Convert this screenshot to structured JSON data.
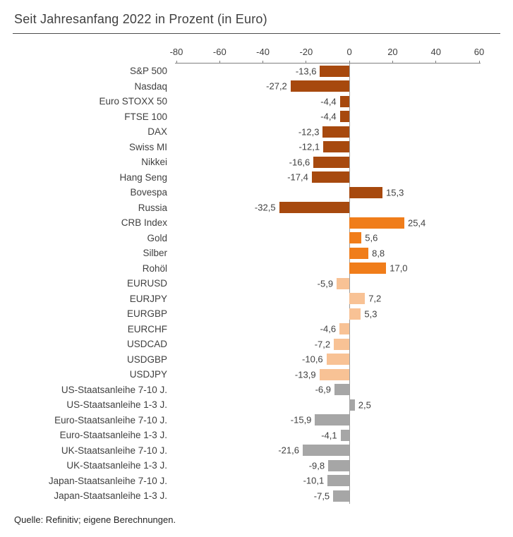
{
  "header": {
    "title": "Seit Jahresanfang 2022 in Prozent (in Euro)"
  },
  "footer": {
    "source": "Quelle: Refinitiv; eigene Berechnungen."
  },
  "chart_data": {
    "type": "bar",
    "orientation": "horizontal",
    "title": "Seit Jahresanfang 2022 in Prozent (in Euro)",
    "xlabel": "",
    "ylabel": "",
    "xlim": [
      -80,
      60
    ],
    "x_ticks": [
      "-80",
      "-60",
      "-40",
      "-20",
      "0",
      "20",
      "40",
      "60"
    ],
    "axis_position": "top",
    "grid": false,
    "legend": "none",
    "colors": {
      "equity": "#A7490E",
      "commodity": "#F07D1A",
      "fx": "#F8C295",
      "bond": "#A6A6A6",
      "axis_line": "#7f7f7f",
      "zero_line": "#9d9d9d"
    },
    "bars": [
      {
        "label": "S&P 500",
        "value": -13.6,
        "display": "-13,6",
        "group": "equity"
      },
      {
        "label": "Nasdaq",
        "value": -27.2,
        "display": "-27,2",
        "group": "equity"
      },
      {
        "label": "Euro STOXX 50",
        "value": -4.4,
        "display": "-4,4",
        "group": "equity"
      },
      {
        "label": "FTSE 100",
        "value": -4.4,
        "display": "-4,4",
        "group": "equity"
      },
      {
        "label": "DAX",
        "value": -12.3,
        "display": "-12,3",
        "group": "equity"
      },
      {
        "label": "Swiss MI",
        "value": -12.1,
        "display": "-12,1",
        "group": "equity"
      },
      {
        "label": "Nikkei",
        "value": -16.6,
        "display": "-16,6",
        "group": "equity"
      },
      {
        "label": "Hang Seng",
        "value": -17.4,
        "display": "-17,4",
        "group": "equity"
      },
      {
        "label": "Bovespa",
        "value": 15.3,
        "display": "15,3",
        "group": "equity"
      },
      {
        "label": "Russia",
        "value": -32.5,
        "display": "-32,5",
        "group": "equity"
      },
      {
        "label": "CRB Index",
        "value": 25.4,
        "display": "25,4",
        "group": "commodity"
      },
      {
        "label": "Gold",
        "value": 5.6,
        "display": "5,6",
        "group": "commodity"
      },
      {
        "label": "Silber",
        "value": 8.8,
        "display": "8,8",
        "group": "commodity"
      },
      {
        "label": "Rohöl",
        "value": 17.0,
        "display": "17,0",
        "group": "commodity"
      },
      {
        "label": "EURUSD",
        "value": -5.9,
        "display": "-5,9",
        "group": "fx"
      },
      {
        "label": "EURJPY",
        "value": 7.2,
        "display": "7,2",
        "group": "fx"
      },
      {
        "label": "EURGBP",
        "value": 5.3,
        "display": "5,3",
        "group": "fx"
      },
      {
        "label": "EURCHF",
        "value": -4.6,
        "display": "-4,6",
        "group": "fx"
      },
      {
        "label": "USDCAD",
        "value": -7.2,
        "display": "-7,2",
        "group": "fx"
      },
      {
        "label": "USDGBP",
        "value": -10.6,
        "display": "-10,6",
        "group": "fx"
      },
      {
        "label": "USDJPY",
        "value": -13.9,
        "display": "-13,9",
        "group": "fx"
      },
      {
        "label": "US-Staatsanleihe 7-10 J.",
        "value": -6.9,
        "display": "-6,9",
        "group": "bond"
      },
      {
        "label": "US-Staatsanleihe 1-3 J.",
        "value": 2.5,
        "display": "2,5",
        "group": "bond"
      },
      {
        "label": "Euro-Staatsanleihe 7-10 J.",
        "value": -15.9,
        "display": "-15,9",
        "group": "bond"
      },
      {
        "label": "Euro-Staatsanleihe 1-3 J.",
        "value": -4.1,
        "display": "-4,1",
        "group": "bond"
      },
      {
        "label": "UK-Staatsanleihe 7-10 J.",
        "value": -21.6,
        "display": "-21,6",
        "group": "bond"
      },
      {
        "label": "UK-Staatsanleihe 1-3 J.",
        "value": -9.8,
        "display": "-9,8",
        "group": "bond"
      },
      {
        "label": "Japan-Staatsanleihe 7-10 J.",
        "value": -10.1,
        "display": "-10,1",
        "group": "bond"
      },
      {
        "label": "Japan-Staatsanleihe 1-3 J.",
        "value": -7.5,
        "display": "-7,5",
        "group": "bond"
      }
    ]
  }
}
